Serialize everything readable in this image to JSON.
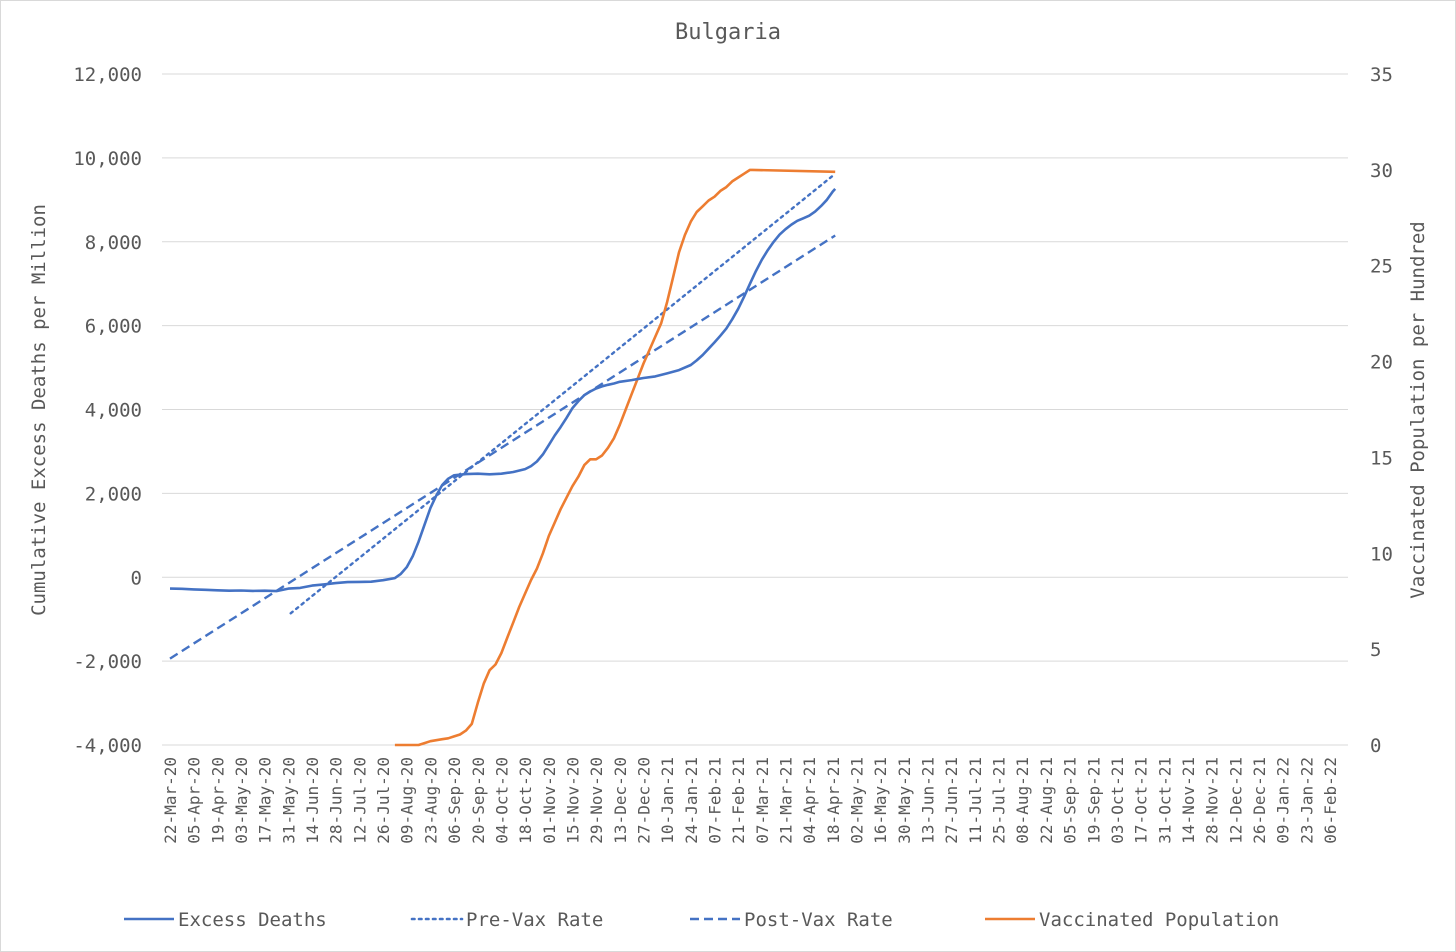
{
  "chart_data": {
    "type": "line",
    "title": "Bulgaria",
    "ylabel": "Cumulative Excess Deaths per Million",
    "y2label": "Vaccinated Population per Hundred",
    "ylim": [
      -4000,
      12000
    ],
    "y2lim": [
      0,
      35
    ],
    "yticks": [
      "12,000",
      "10,000",
      "8,000",
      "6,000",
      "4,000",
      "2,000",
      "0",
      "-2,000",
      "-4,000"
    ],
    "y2ticks": [
      "35",
      "30",
      "25",
      "20",
      "15",
      "10",
      "5",
      "0"
    ],
    "x": [
      "22-Mar-20",
      "05-Apr-20",
      "19-Apr-20",
      "03-May-20",
      "17-May-20",
      "31-May-20",
      "14-Jun-20",
      "28-Jun-20",
      "12-Jul-20",
      "26-Jul-20",
      "09-Aug-20",
      "23-Aug-20",
      "06-Sep-20",
      "20-Sep-20",
      "04-Oct-20",
      "18-Oct-20",
      "01-Nov-20",
      "15-Nov-20",
      "29-Nov-20",
      "13-Dec-20",
      "27-Dec-20",
      "10-Jan-21",
      "24-Jan-21",
      "07-Feb-21",
      "21-Feb-21",
      "07-Mar-21",
      "21-Mar-21",
      "04-Apr-21",
      "18-Apr-21",
      "02-May-21",
      "16-May-21",
      "30-May-21",
      "13-Jun-21",
      "27-Jun-21",
      "11-Jul-21",
      "25-Jul-21",
      "08-Aug-21",
      "22-Aug-21",
      "05-Sep-21",
      "19-Sep-21",
      "03-Oct-21",
      "17-Oct-21",
      "31-Oct-21",
      "14-Nov-21",
      "28-Nov-21",
      "12-Dec-21",
      "26-Dec-21",
      "09-Jan-22",
      "23-Jan-22",
      "06-Feb-22"
    ],
    "x_end": 51,
    "series": [
      {
        "name": "Excess Deaths",
        "axis": "left",
        "color": "#4472c4",
        "style": "solid",
        "points": [
          [
            0,
            -270
          ],
          [
            1,
            -275
          ],
          [
            2,
            -290
          ],
          [
            3,
            -300
          ],
          [
            4,
            -310
          ],
          [
            5,
            -320
          ],
          [
            6,
            -315
          ],
          [
            7,
            -325
          ],
          [
            8,
            -320
          ],
          [
            9,
            -330
          ],
          [
            10,
            -270
          ],
          [
            11,
            -255
          ],
          [
            12,
            -200
          ],
          [
            13,
            -170
          ],
          [
            14,
            -140
          ],
          [
            15,
            -115
          ],
          [
            16,
            -110
          ],
          [
            17,
            -105
          ],
          [
            18,
            -70
          ],
          [
            19,
            -20
          ],
          [
            19.5,
            80
          ],
          [
            20,
            240
          ],
          [
            20.5,
            500
          ],
          [
            21,
            850
          ],
          [
            21.5,
            1250
          ],
          [
            22,
            1650
          ],
          [
            22.5,
            1950
          ],
          [
            23,
            2200
          ],
          [
            23.5,
            2350
          ],
          [
            24,
            2430
          ],
          [
            25,
            2460
          ],
          [
            26,
            2470
          ],
          [
            27,
            2455
          ],
          [
            28,
            2470
          ],
          [
            29,
            2510
          ],
          [
            30,
            2580
          ],
          [
            30.5,
            2650
          ],
          [
            31,
            2760
          ],
          [
            31.5,
            2930
          ],
          [
            32,
            3150
          ],
          [
            32.5,
            3380
          ],
          [
            33,
            3580
          ],
          [
            33.5,
            3800
          ],
          [
            34,
            4030
          ],
          [
            34.5,
            4200
          ],
          [
            35,
            4340
          ],
          [
            35.5,
            4430
          ],
          [
            36,
            4500
          ],
          [
            36.5,
            4550
          ],
          [
            37,
            4590
          ],
          [
            37.5,
            4620
          ],
          [
            38,
            4660
          ],
          [
            39,
            4700
          ],
          [
            40,
            4750
          ],
          [
            41,
            4790
          ],
          [
            42,
            4860
          ],
          [
            43,
            4940
          ],
          [
            44,
            5060
          ],
          [
            44.5,
            5170
          ],
          [
            45,
            5300
          ],
          [
            45.5,
            5450
          ],
          [
            46,
            5600
          ],
          [
            46.5,
            5760
          ],
          [
            47,
            5930
          ],
          [
            47.5,
            6150
          ],
          [
            48,
            6400
          ],
          [
            48.5,
            6690
          ],
          [
            49,
            7000
          ],
          [
            49.5,
            7300
          ],
          [
            50,
            7570
          ],
          [
            50.5,
            7800
          ],
          [
            51,
            8000
          ],
          [
            51.5,
            8170
          ],
          [
            52,
            8300
          ],
          [
            52.5,
            8410
          ],
          [
            53,
            8500
          ],
          [
            53.5,
            8560
          ],
          [
            54,
            8620
          ],
          [
            54.5,
            8720
          ],
          [
            55,
            8850
          ],
          [
            55.5,
            9000
          ],
          [
            56,
            9200
          ],
          [
            56.2,
            9260
          ]
        ]
      },
      {
        "name": "Pre-Vax Rate",
        "axis": "left",
        "color": "#4472c4",
        "style": "dotted",
        "points": [
          [
            10.2,
            -860
          ],
          [
            56.2,
            9620
          ]
        ]
      },
      {
        "name": "Post-Vax Rate",
        "axis": "left",
        "color": "#4472c4",
        "style": "dashed",
        "points": [
          [
            0,
            -1940
          ],
          [
            56.2,
            8150
          ]
        ]
      },
      {
        "name": "Vaccinated Population",
        "axis": "right",
        "color": "#ed7d31",
        "style": "solid",
        "points": [
          [
            19,
            0
          ],
          [
            20,
            0
          ],
          [
            21,
            0
          ],
          [
            21.5,
            0.1
          ],
          [
            22,
            0.2
          ],
          [
            23,
            0.3
          ],
          [
            23.5,
            0.35
          ],
          [
            24,
            0.45
          ],
          [
            24.5,
            0.55
          ],
          [
            25,
            0.75
          ],
          [
            25.5,
            1.1
          ],
          [
            26,
            2.2
          ],
          [
            26.5,
            3.2
          ],
          [
            27,
            3.9
          ],
          [
            27.5,
            4.2
          ],
          [
            28,
            4.8
          ],
          [
            28.5,
            5.6
          ],
          [
            29,
            6.4
          ],
          [
            29.5,
            7.2
          ],
          [
            30,
            7.9
          ],
          [
            30.5,
            8.6
          ],
          [
            31,
            9.2
          ],
          [
            31.5,
            10.0
          ],
          [
            32,
            10.9
          ],
          [
            32.5,
            11.6
          ],
          [
            33,
            12.3
          ],
          [
            33.5,
            12.9
          ],
          [
            34,
            13.5
          ],
          [
            34.5,
            14.0
          ],
          [
            35,
            14.6
          ],
          [
            35.5,
            14.9
          ],
          [
            36,
            14.9
          ],
          [
            36.5,
            15.1
          ],
          [
            37,
            15.5
          ],
          [
            37.5,
            16.0
          ],
          [
            38,
            16.7
          ],
          [
            38.5,
            17.5
          ],
          [
            39,
            18.3
          ],
          [
            39.5,
            19.1
          ],
          [
            40,
            19.9
          ],
          [
            40.5,
            20.6
          ],
          [
            41,
            21.3
          ],
          [
            41.5,
            22.0
          ],
          [
            42,
            23.1
          ],
          [
            42.5,
            24.4
          ],
          [
            43,
            25.7
          ],
          [
            43.5,
            26.6
          ],
          [
            44,
            27.3
          ],
          [
            44.5,
            27.8
          ],
          [
            45,
            28.1
          ],
          [
            45.5,
            28.4
          ],
          [
            46,
            28.6
          ],
          [
            46.5,
            28.9
          ],
          [
            47,
            29.1
          ],
          [
            47.5,
            29.4
          ],
          [
            48,
            29.6
          ],
          [
            48.5,
            29.8
          ],
          [
            49,
            30.0
          ],
          [
            49.2,
            30.0
          ],
          [
            56.2,
            29.9
          ]
        ]
      }
    ],
    "grid": true,
    "legend": "bottom"
  }
}
